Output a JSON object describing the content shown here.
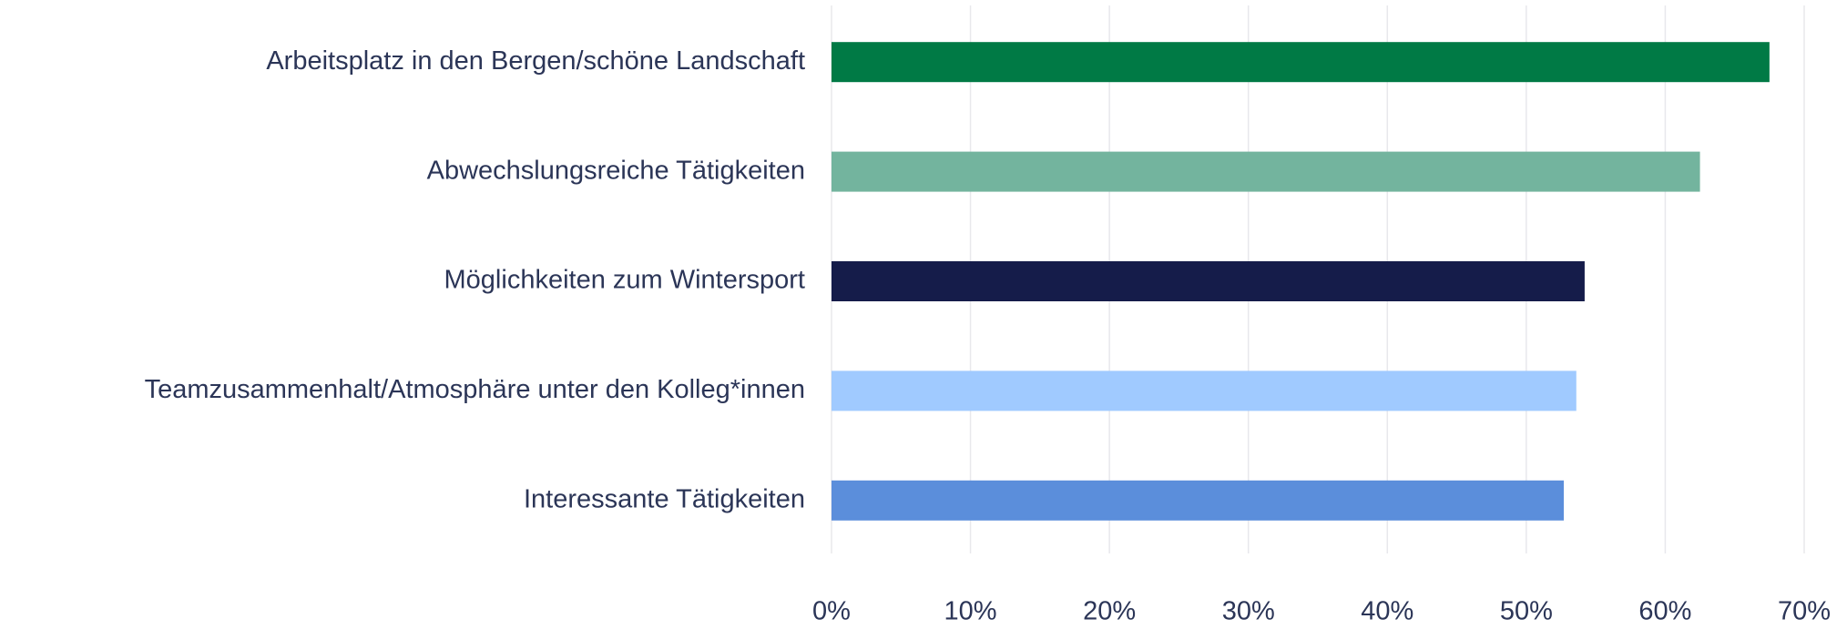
{
  "chart_data": {
    "type": "bar",
    "orientation": "horizontal",
    "categories": [
      "Arbeitsplatz in den Bergen/schöne Landschaft",
      "Abwechslungsreiche Tätigkeiten",
      "Möglichkeiten zum Wintersport",
      "Teamzusammenhalt/Atmosphäre unter den Kolleg*innen",
      "Interessante Tätigkeiten"
    ],
    "values": [
      67.5,
      62.5,
      54.2,
      53.6,
      52.7
    ],
    "colors": [
      "#007a45",
      "#73b49e",
      "#151c4a",
      "#a0caff",
      "#5b8edb"
    ],
    "xlim": [
      0,
      70
    ],
    "xticks": [
      {
        "value": 0,
        "label": "0%"
      },
      {
        "value": 10,
        "label": "10%"
      },
      {
        "value": 20,
        "label": "20%"
      },
      {
        "value": 30,
        "label": "30%"
      },
      {
        "value": 40,
        "label": "40%"
      },
      {
        "value": 50,
        "label": "50%"
      },
      {
        "value": 60,
        "label": "60%"
      },
      {
        "value": 70,
        "label": "70%"
      }
    ],
    "grid": true
  }
}
